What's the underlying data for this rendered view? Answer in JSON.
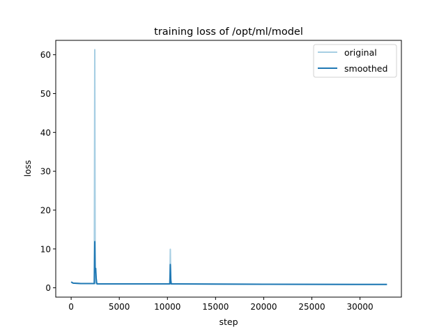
{
  "chart_data": {
    "type": "line",
    "title": "training loss of /opt/ml/model",
    "xlabel": "step",
    "ylabel": "loss",
    "xlim": [
      -1600,
      34300
    ],
    "ylim": [
      -2.4,
      63.7
    ],
    "xticks": [
      0,
      5000,
      10000,
      15000,
      20000,
      25000,
      30000
    ],
    "xtick_labels": [
      "0",
      "5000",
      "10000",
      "15000",
      "20000",
      "25000",
      "30000"
    ],
    "yticks": [
      0,
      10,
      20,
      30,
      40,
      50,
      60
    ],
    "ytick_labels": [
      "0",
      "10",
      "20",
      "30",
      "40",
      "50",
      "60"
    ],
    "grid": false,
    "legend": {
      "position": "upper right",
      "entries": [
        "original",
        "smoothed"
      ]
    },
    "series": [
      {
        "name": "original",
        "color": "#a6cee3",
        "x": [
          0,
          200,
          1000,
          2400,
          2450,
          2500,
          2550,
          2600,
          2700,
          10250,
          10300,
          10350,
          10400,
          15000,
          20000,
          25000,
          30000,
          32800
        ],
        "y": [
          1.5,
          1.2,
          1.1,
          1.1,
          61.3,
          1.1,
          5.0,
          1.1,
          1.0,
          1.0,
          9.9,
          1.0,
          1.0,
          0.95,
          0.92,
          0.9,
          0.88,
          0.87
        ]
      },
      {
        "name": "smoothed",
        "color": "#1f78b4",
        "x": [
          0,
          200,
          1000,
          2400,
          2450,
          2500,
          2550,
          2600,
          2650,
          2700,
          10250,
          10300,
          10350,
          10400,
          15000,
          20000,
          25000,
          30000,
          32800
        ],
        "y": [
          1.5,
          1.2,
          1.1,
          1.1,
          11.9,
          4.0,
          5.0,
          2.5,
          1.3,
          1.0,
          1.0,
          6.0,
          2.0,
          1.0,
          0.95,
          0.92,
          0.9,
          0.88,
          0.87
        ]
      }
    ]
  }
}
